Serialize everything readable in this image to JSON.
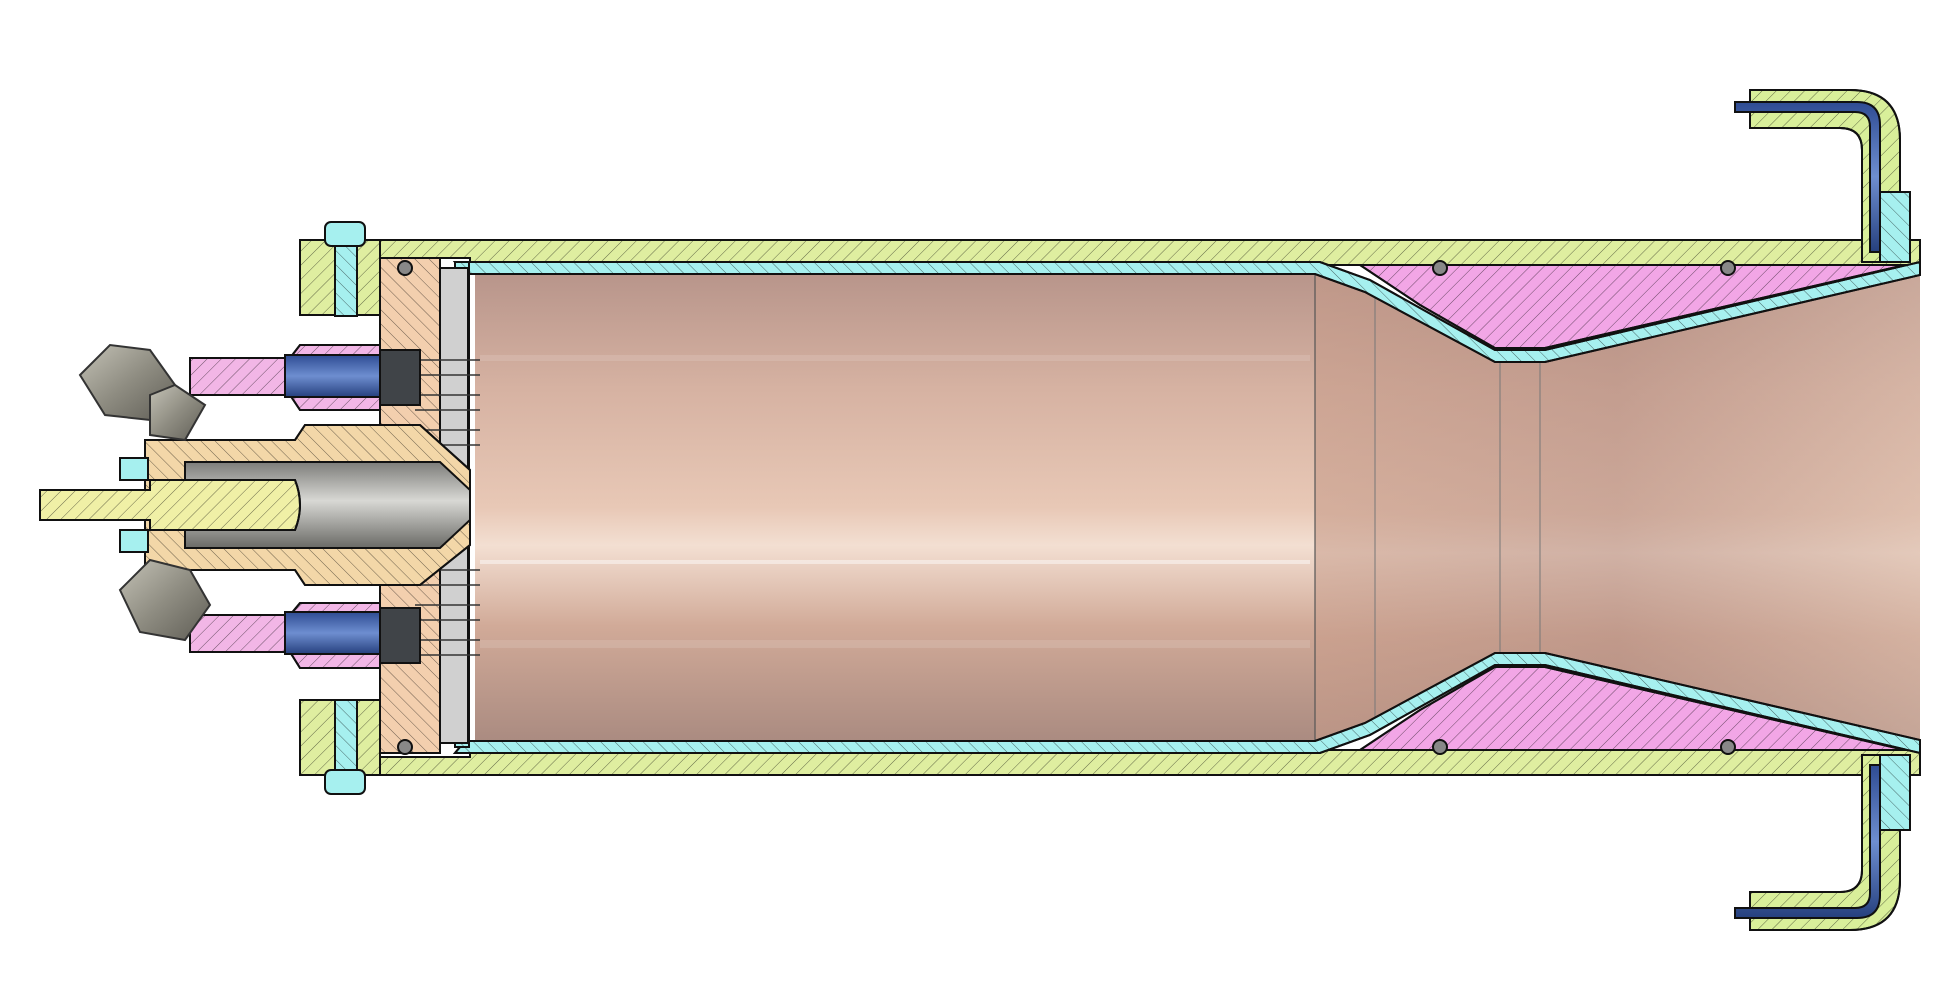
{
  "drawing": {
    "kind": "engine-cross-section",
    "background": "#ffffff",
    "components": [
      {
        "name": "outer-casing",
        "color": "#dfeea0"
      },
      {
        "name": "chamber-liner",
        "color": "#a6f0ef"
      },
      {
        "name": "nozzle-insert",
        "color": "#f2a6e6"
      },
      {
        "name": "injector-plate",
        "color": "#f3cfae"
      },
      {
        "name": "igniter-body",
        "color": "#f3d7a8"
      },
      {
        "name": "igniter-rod",
        "color": "#f0f0a6"
      },
      {
        "name": "feed-fittings",
        "color": "#f2b6e6"
      },
      {
        "name": "fuel-tubes",
        "color": "#3d5da8"
      },
      {
        "name": "coolant-elbows",
        "color": "#d9ef9a"
      },
      {
        "name": "chamber-interior",
        "color": "#c9a596"
      },
      {
        "name": "hex-nuts",
        "color": "#9c9a90"
      }
    ]
  }
}
